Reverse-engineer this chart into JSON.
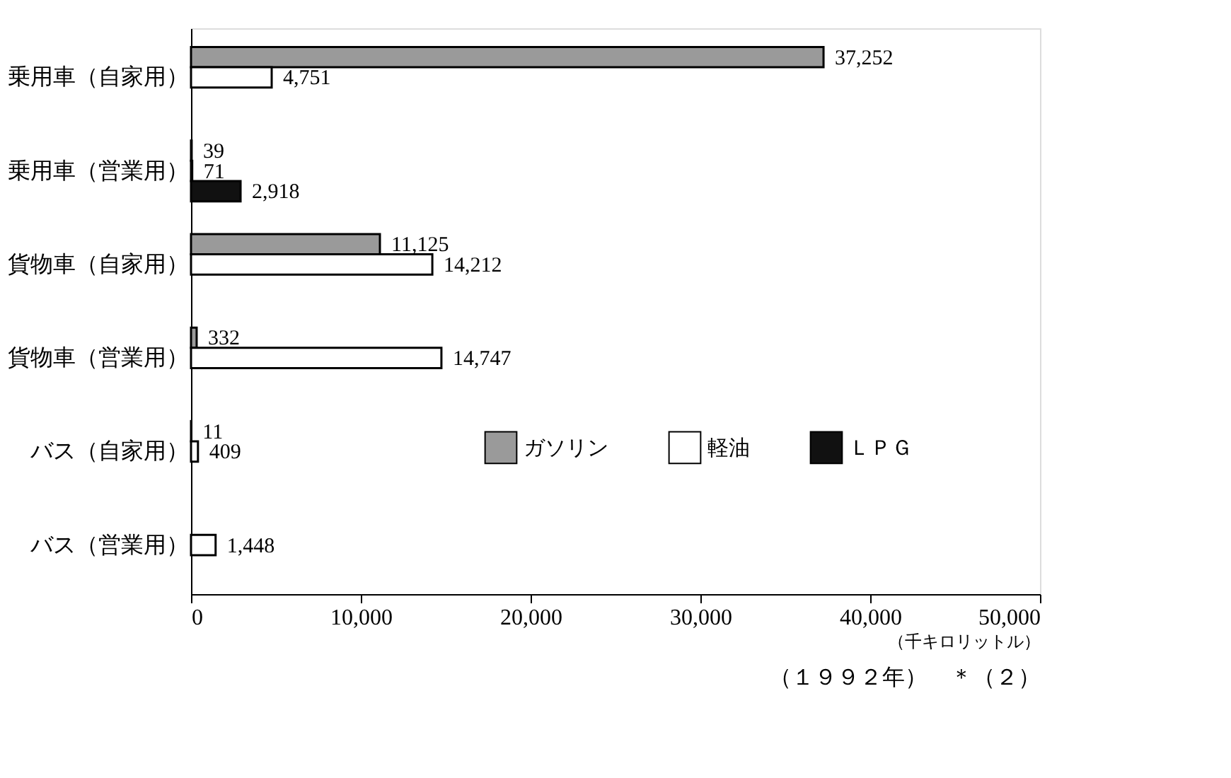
{
  "chart_data": {
    "type": "bar",
    "orientation": "horizontal",
    "categories": [
      "乗用車（自家用）",
      "乗用車（営業用）",
      "貨物車（自家用）",
      "貨物車（営業用）",
      "バス（自家用）",
      "バス（営業用）"
    ],
    "series": [
      {
        "name": "ガソリン",
        "color": "#9a9a9a",
        "values": [
          37252,
          39,
          11125,
          332,
          11,
          null
        ],
        "value_labels": [
          "37,252",
          "39",
          "11,125",
          "332",
          "11",
          null
        ]
      },
      {
        "name": "軽油",
        "color": "#ffffff",
        "values": [
          4751,
          71,
          14212,
          14747,
          409,
          1448
        ],
        "value_labels": [
          "4,751",
          "71",
          "14,212",
          "14,747",
          "409",
          "1,448"
        ]
      },
      {
        "name": "ＬＰＧ",
        "color": "#111111",
        "values": [
          null,
          2918,
          null,
          null,
          null,
          null
        ],
        "value_labels": [
          null,
          "2,918",
          null,
          null,
          null,
          null
        ]
      }
    ],
    "xlim": [
      0,
      50000
    ],
    "xticks": [
      0,
      {
        "value": 10000,
        "label": "10,000"
      },
      {
        "value": 20000,
        "label": "20,000"
      },
      {
        "value": 30000,
        "label": "30,000"
      },
      {
        "value": 40000,
        "label": "40,000"
      },
      {
        "value": 50000,
        "label": "50,000"
      }
    ],
    "xlabel": "（千キロリットル）",
    "annotations": [
      "（１９９２年）　＊（２）"
    ],
    "grid": false,
    "legend": "bottom right"
  }
}
